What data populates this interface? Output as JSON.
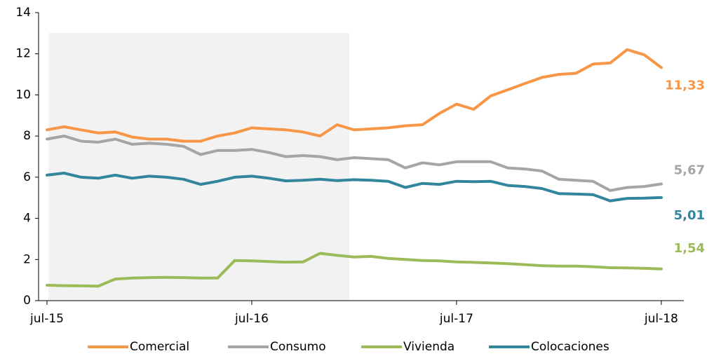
{
  "chart_data": {
    "type": "line",
    "categories": [
      "jul-15",
      null,
      null,
      null,
      null,
      null,
      null,
      null,
      null,
      null,
      null,
      null,
      "jul-16",
      null,
      null,
      null,
      null,
      null,
      null,
      null,
      null,
      null,
      null,
      null,
      "jul-17",
      null,
      null,
      null,
      null,
      null,
      null,
      null,
      null,
      null,
      null,
      null,
      "jul-18"
    ],
    "series": [
      {
        "name": "Comercial",
        "color": "#f79646",
        "values": [
          8.3,
          8.45,
          8.3,
          8.15,
          8.2,
          7.95,
          7.85,
          7.85,
          7.75,
          7.75,
          8.0,
          8.15,
          8.4,
          8.35,
          8.3,
          8.2,
          8.0,
          8.55,
          8.3,
          8.35,
          8.4,
          8.5,
          8.55,
          9.1,
          9.55,
          9.3,
          9.95,
          10.25,
          10.55,
          10.85,
          11.0,
          11.05,
          11.5,
          11.55,
          12.2,
          11.95,
          11.33
        ],
        "value_labels": [
          null,
          null,
          null,
          null,
          null,
          null,
          null,
          null,
          null,
          null,
          null,
          null,
          null,
          null,
          null,
          null,
          null,
          null,
          null,
          null,
          null,
          null,
          null,
          null,
          null,
          null,
          null,
          null,
          null,
          null,
          null,
          null,
          null,
          null,
          null,
          null,
          "11,33"
        ]
      },
      {
        "name": "Consumo",
        "color": "#a5a5a5",
        "values": [
          7.85,
          8.0,
          7.75,
          7.7,
          7.85,
          7.6,
          7.65,
          7.6,
          7.5,
          7.1,
          7.3,
          7.3,
          7.35,
          7.2,
          7.0,
          7.05,
          7.0,
          6.85,
          6.95,
          6.9,
          6.85,
          6.45,
          6.7,
          6.6,
          6.75,
          6.75,
          6.75,
          6.45,
          6.4,
          6.3,
          5.9,
          5.85,
          5.8,
          5.35,
          5.5,
          5.55,
          5.67
        ],
        "value_labels": [
          null,
          null,
          null,
          null,
          null,
          null,
          null,
          null,
          null,
          null,
          null,
          null,
          null,
          null,
          null,
          null,
          null,
          null,
          null,
          null,
          null,
          null,
          null,
          null,
          null,
          null,
          null,
          null,
          null,
          null,
          null,
          null,
          null,
          null,
          null,
          null,
          "5,67"
        ]
      },
      {
        "name": "Vivienda",
        "color": "#9bbb59",
        "values": [
          0.75,
          0.73,
          0.72,
          0.7,
          1.05,
          1.1,
          1.12,
          1.13,
          1.12,
          1.1,
          1.1,
          1.95,
          1.93,
          1.9,
          1.87,
          1.88,
          2.3,
          2.2,
          2.12,
          2.15,
          2.05,
          2.0,
          1.95,
          1.93,
          1.88,
          1.86,
          1.83,
          1.8,
          1.75,
          1.7,
          1.68,
          1.68,
          1.65,
          1.6,
          1.59,
          1.57,
          1.54
        ],
        "value_labels": [
          null,
          null,
          null,
          null,
          null,
          null,
          null,
          null,
          null,
          null,
          null,
          null,
          null,
          null,
          null,
          null,
          null,
          null,
          null,
          null,
          null,
          null,
          null,
          null,
          null,
          null,
          null,
          null,
          null,
          null,
          null,
          null,
          null,
          null,
          null,
          null,
          "1,54"
        ]
      },
      {
        "name": "Colocaciones",
        "color": "#31859c",
        "values": [
          6.1,
          6.2,
          6.0,
          5.95,
          6.1,
          5.95,
          6.05,
          6.0,
          5.9,
          5.65,
          5.8,
          6.0,
          6.05,
          5.95,
          5.82,
          5.85,
          5.9,
          5.83,
          5.88,
          5.85,
          5.8,
          5.5,
          5.7,
          5.65,
          5.8,
          5.78,
          5.8,
          5.6,
          5.55,
          5.45,
          5.2,
          5.18,
          5.15,
          4.85,
          4.97,
          4.98,
          5.01
        ],
        "value_labels": [
          null,
          null,
          null,
          null,
          null,
          null,
          null,
          null,
          null,
          null,
          null,
          null,
          null,
          null,
          null,
          null,
          null,
          null,
          null,
          null,
          null,
          null,
          null,
          null,
          null,
          null,
          null,
          null,
          null,
          null,
          null,
          null,
          null,
          null,
          null,
          null,
          "5,01"
        ]
      }
    ],
    "ylim": [
      0,
      14
    ],
    "yticks": [
      0,
      2,
      4,
      6,
      8,
      10,
      12,
      14
    ],
    "grid": false,
    "legend": "bottom"
  }
}
